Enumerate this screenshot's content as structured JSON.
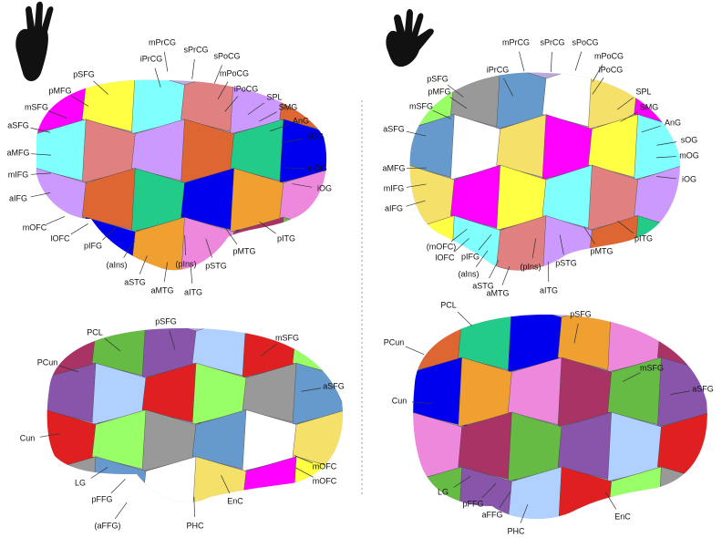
{
  "panels": [
    {
      "labels": [
        "mPrCG",
        "sPrCG",
        "sPoCG",
        "iPrCG",
        "mPoCG",
        "pSFG",
        "iPoCG",
        "SPL",
        "pMFG",
        "SMG",
        "mSFG",
        "AnG",
        "aSFG",
        "sOG",
        "aMFG",
        "mOG",
        "mIFG",
        "iOG",
        "aIFG",
        "mOFC",
        "lOFC",
        "pIFG",
        "pITG",
        "pMTG",
        "(pIns)",
        "pSTG",
        "(aIns)",
        "aSTG",
        "aMTG",
        "aITG"
      ]
    },
    {
      "labels": [
        "mPrCG",
        "sPrCG",
        "sPoCG",
        "mPoCG",
        "iPrCG",
        "iPoCG",
        "pSFG",
        "pMFG",
        "SPL",
        "mSFG",
        "SMG",
        "aSFG",
        "AnG",
        "sOG",
        "mOG",
        "aMFG",
        "mIFG",
        "iOG",
        "aIFG",
        "pITG",
        "(mOFC)",
        "pMTG",
        "lOFC",
        "pIFG",
        "(pIns)",
        "pSTG",
        "(aIns)",
        "aSTG",
        "aMTG",
        "aITG"
      ]
    },
    {
      "labels": [
        "pSFG",
        "PCL",
        "mSFG",
        "PCun",
        "aSFG",
        "Cun",
        "mOFC",
        "mOFC",
        "LG",
        "pFFG",
        "EnC",
        "(aFFG)",
        "PHC"
      ]
    },
    {
      "labels": [
        "PCL",
        "pSFG",
        "PCun",
        "mSFG",
        "Cun",
        "aSFG",
        "LG",
        "pFFG",
        "aFFG",
        "EnC",
        "PHC"
      ]
    }
  ]
}
